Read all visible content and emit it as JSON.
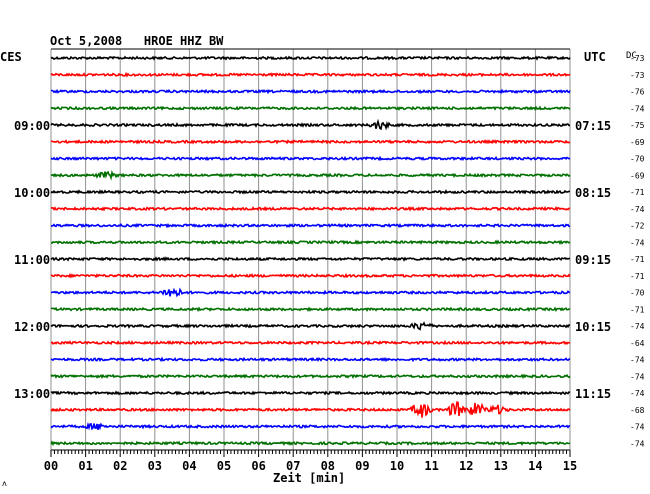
{
  "chart_data": {
    "type": "line",
    "title": "Oct 5,2008   HROE HHZ BW",
    "left_axis_label": "CES",
    "right_axis_label": "UTC",
    "dc_label": "DC",
    "xlabel": "Zeit [min]",
    "x_ticks": [
      "00",
      "01",
      "02",
      "03",
      "04",
      "05",
      "06",
      "07",
      "08",
      "09",
      "10",
      "11",
      "12",
      "13",
      "14",
      "15"
    ],
    "xlim": [
      0,
      15
    ],
    "left_time_labels": [
      {
        "trace": 4,
        "text": "09:00"
      },
      {
        "trace": 8,
        "text": "10:00"
      },
      {
        "trace": 12,
        "text": "11:00"
      },
      {
        "trace": 16,
        "text": "12:00"
      },
      {
        "trace": 20,
        "text": "13:00"
      }
    ],
    "right_time_labels": [
      {
        "trace": 4,
        "text": "07:15"
      },
      {
        "trace": 8,
        "text": "08:15"
      },
      {
        "trace": 12,
        "text": "09:15"
      },
      {
        "trace": 16,
        "text": "10:15"
      },
      {
        "trace": 20,
        "text": "11:15"
      }
    ],
    "trace_colors": [
      "#000000",
      "#ff0000",
      "#0000ff",
      "#007000"
    ],
    "traces": [
      {
        "dc": "-73",
        "events": []
      },
      {
        "dc": "-73",
        "events": []
      },
      {
        "dc": "-76",
        "events": []
      },
      {
        "dc": "-74",
        "events": []
      },
      {
        "dc": "-75",
        "events": [
          {
            "minute": 9.5,
            "amp": 4
          }
        ]
      },
      {
        "dc": "-69",
        "events": []
      },
      {
        "dc": "-70",
        "events": []
      },
      {
        "dc": "-69",
        "events": [
          {
            "minute": 1.6,
            "amp": 3
          }
        ]
      },
      {
        "dc": "-71",
        "events": []
      },
      {
        "dc": "-74",
        "events": []
      },
      {
        "dc": "-72",
        "events": []
      },
      {
        "dc": "-74",
        "events": []
      },
      {
        "dc": "-71",
        "events": []
      },
      {
        "dc": "-71",
        "events": []
      },
      {
        "dc": "-70",
        "events": [
          {
            "minute": 3.5,
            "amp": 6
          }
        ]
      },
      {
        "dc": "-71",
        "events": []
      },
      {
        "dc": "-74",
        "events": [
          {
            "minute": 10.7,
            "amp": 4
          }
        ]
      },
      {
        "dc": "-64",
        "events": []
      },
      {
        "dc": "-74",
        "events": []
      },
      {
        "dc": "-74",
        "events": []
      },
      {
        "dc": "-74",
        "events": []
      },
      {
        "dc": "-68",
        "events": [
          {
            "minute": 10.7,
            "amp": 8
          },
          {
            "minute": 11.7,
            "amp": 8
          },
          {
            "minute": 12.3,
            "amp": 7
          },
          {
            "minute": 12.9,
            "amp": 4
          }
        ]
      },
      {
        "dc": "-74",
        "events": [
          {
            "minute": 1.3,
            "amp": 3
          }
        ]
      },
      {
        "dc": "-74",
        "events": []
      }
    ]
  }
}
